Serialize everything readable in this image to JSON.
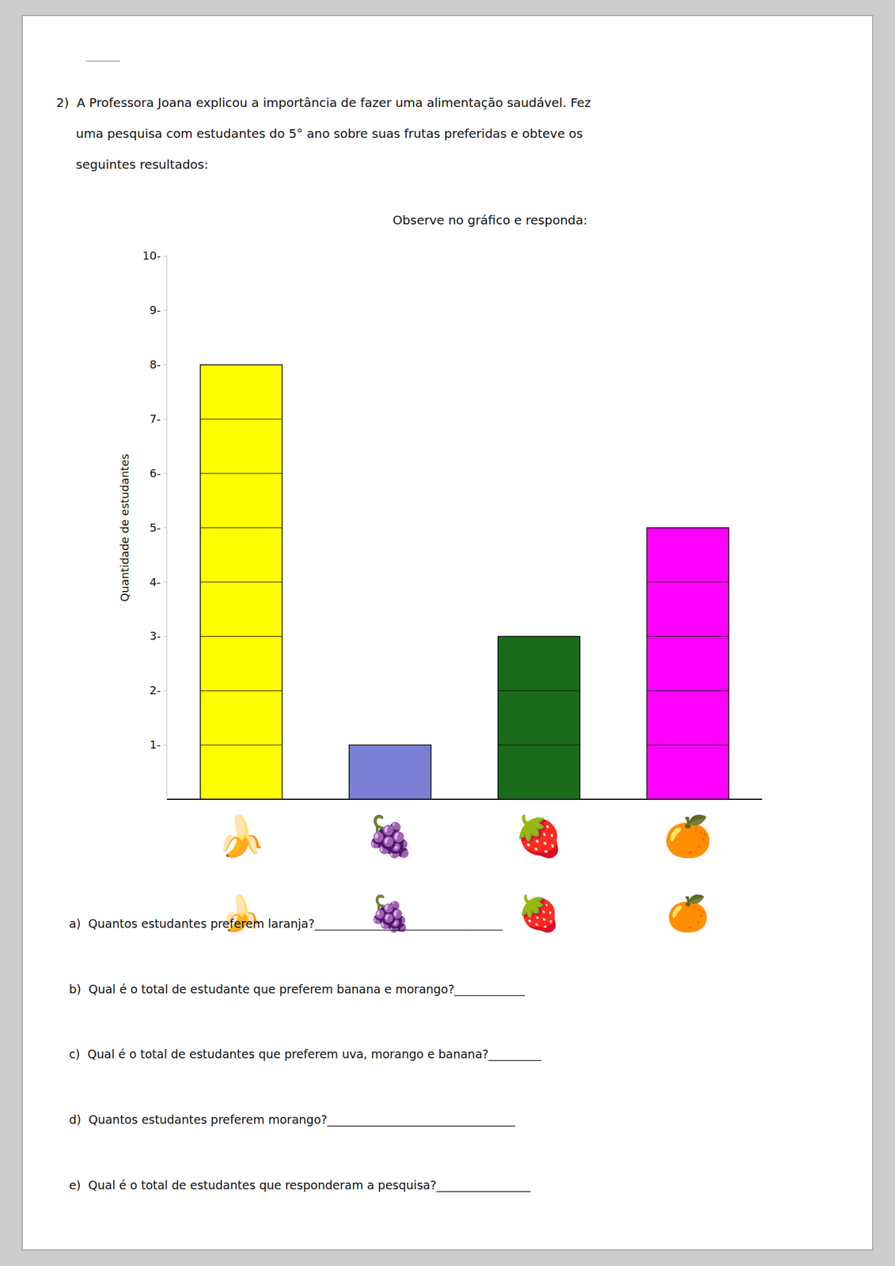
{
  "chart_data": {
    "type": "bar",
    "title": "Observe no gráfico e responda:",
    "ylabel": "Quantidade de estudantes",
    "categories": [
      "🍌",
      "🍇",
      "🍓",
      "🍊"
    ],
    "values": [
      8,
      1,
      3,
      5
    ],
    "colors": [
      "#FFFF00",
      "#7B7FD4",
      "#1A6B1A",
      "#FF00FF"
    ],
    "ylim": [
      0,
      10
    ],
    "yticks": [
      {
        "value": 1,
        "label": "1-"
      },
      {
        "value": 2,
        "label": "2-"
      },
      {
        "value": 3,
        "label": "3-"
      },
      {
        "value": 4,
        "label": "4-"
      },
      {
        "value": 5,
        "label": "5-"
      },
      {
        "value": 6,
        "label": "6-"
      },
      {
        "value": 7,
        "label": "7-"
      },
      {
        "value": 8,
        "label": "8-"
      },
      {
        "value": 9,
        "label": "9-"
      },
      {
        "value": 10,
        "label": "10-"
      }
    ],
    "grid": false,
    "annotations": [
      "2)  A Professora Joana explicou a importância de fazer uma alimentação saudável. Fez",
      "     uma pesquisa com estudantes do 5° ano sobre suas frutas preferidas e obteve os",
      "     seguintes resultados:",
      "a)  Quantos estudantes preferem laranja?________________________________",
      "b)  Qual é o total de estudante que preferem banana e morango?____________",
      "c)  Qual é o total de estudantes que preferem uva, morango e banana?_________",
      "d)  Quantos estudantes preferem morango?________________________________",
      "e)  Qual é o total de estudantes que responderam a pesquisa?________________"
    ]
  }
}
